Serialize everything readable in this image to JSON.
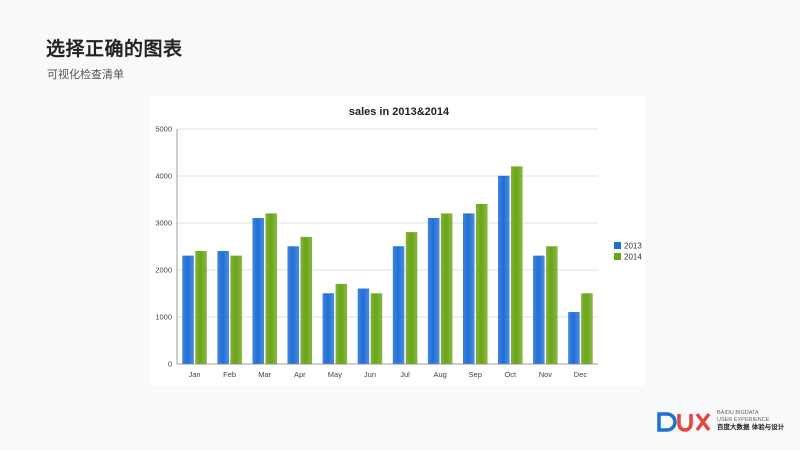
{
  "header": {
    "title": "选择正确的图表",
    "subtitle": "可视化检查清单"
  },
  "colors": {
    "series_2013": "#1f6fd6",
    "series_2014": "#6aa516",
    "grid": "#d9d9d9"
  },
  "chart_data": {
    "type": "bar",
    "title": "sales in 2013&2014",
    "categories": [
      "Jan",
      "Feb",
      "Mar",
      "Apr",
      "May",
      "Jun",
      "Jul",
      "Aug",
      "Sep",
      "Oct",
      "Nov",
      "Dec"
    ],
    "series": [
      {
        "name": "2013",
        "values": [
          2300,
          2400,
          3100,
          2500,
          1500,
          1600,
          2500,
          3100,
          3200,
          4000,
          2300,
          1100
        ]
      },
      {
        "name": "2014",
        "values": [
          2400,
          2300,
          3200,
          2700,
          1700,
          1500,
          2800,
          3200,
          3400,
          4200,
          2500,
          1500
        ]
      }
    ],
    "ylim": [
      0,
      5000
    ],
    "yticks": [
      0,
      1000,
      2000,
      3000,
      4000,
      5000
    ],
    "grid": true,
    "legend": "right",
    "xlabel": "",
    "ylabel": ""
  },
  "brand": {
    "line1": "BAIDU BIGDATA",
    "line2": "USER EXPERIENCE",
    "line3": "百度大数据 体验与设计"
  }
}
